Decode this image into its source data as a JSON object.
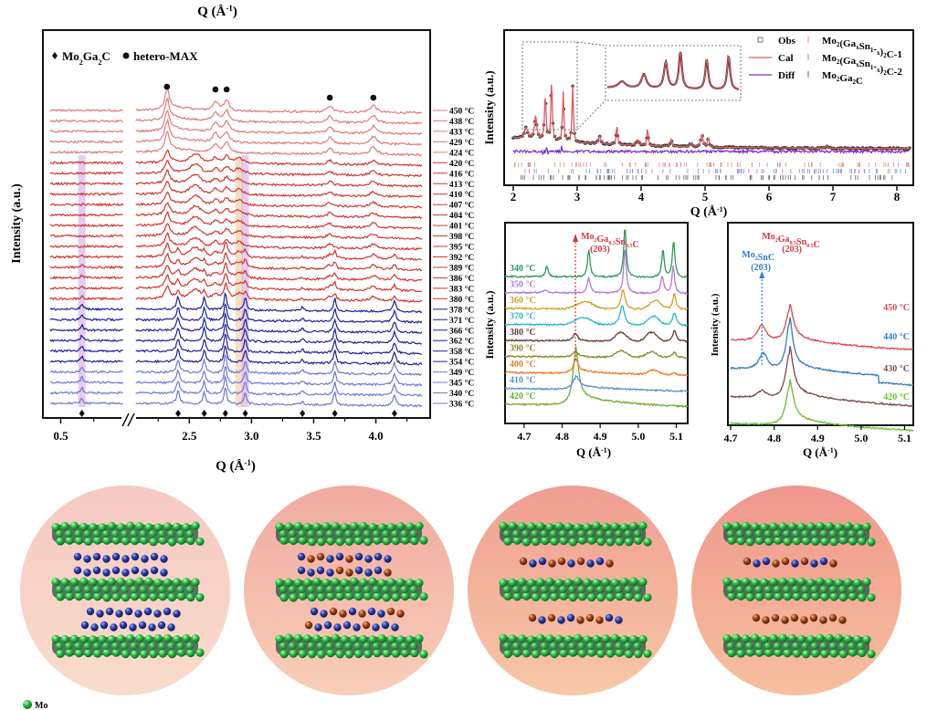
{
  "chart_data": [
    {
      "id": "panel-a",
      "type": "line",
      "subtype": "stacked-waterfall",
      "top_xlabel": "Q (Å-1)",
      "xlabel": "Q (Å-1)",
      "ylabel": "Intensity (a.u.)",
      "x_segments": [
        [
          0.4,
          0.98
        ],
        [
          2.05,
          4.4
        ]
      ],
      "xticks": [
        0.5,
        2.5,
        3.0,
        3.5,
        4.0
      ],
      "axis_break": true,
      "legend": [
        {
          "marker": "diamond",
          "label": "Mo2Ga2C"
        },
        {
          "marker": "circle",
          "label": "hetero-MAX"
        }
      ],
      "hetero_max_peaks": [
        2.32,
        2.71,
        2.8,
        3.63,
        3.98
      ],
      "mo2ga2c_peaks": [
        0.66,
        2.41,
        2.62,
        2.79,
        2.95,
        3.41,
        3.67,
        4.15
      ],
      "highlight_bands": [
        {
          "q": 0.66,
          "color": "#c58be0"
        },
        {
          "q": 2.9,
          "color": "#f3b678"
        },
        {
          "q": 2.95,
          "color": "#c58be0"
        }
      ],
      "temperatures": [
        "450 °C",
        "438 °C",
        "433 °C",
        "429 °C",
        "424 °C",
        "420 °C",
        "416 °C",
        "413 °C",
        "410 °C",
        "407 °C",
        "404 °C",
        "401 °C",
        "398 °C",
        "395 °C",
        "392 °C",
        "389 °C",
        "386 °C",
        "383 °C",
        "380 °C",
        "378 °C",
        "371 °C",
        "366 °C",
        "362 °C",
        "358 °C",
        "354 °C",
        "349 °C",
        "345 °C",
        "340 °C",
        "336 °C"
      ],
      "trace_colors": {
        "high": "#e07a78",
        "mid": "#d2322d",
        "low": "#1b1f9c",
        "lowest": "#6c78d6"
      }
    },
    {
      "id": "panel-b",
      "type": "line",
      "subtype": "rietveld-refinement",
      "xlabel": "Q (Å-1)",
      "ylabel": "Intensity (a.u.)",
      "xlim": [
        1.95,
        8.3
      ],
      "xticks": [
        2,
        3,
        4,
        5,
        6,
        7,
        8
      ],
      "legend_left": [
        {
          "marker": "square-open",
          "label": "Obs",
          "color": "#555555"
        },
        {
          "marker": "line",
          "label": "Cal",
          "color": "#e05a5a"
        },
        {
          "marker": "line",
          "label": "Diff",
          "color": "#7a2ccf"
        }
      ],
      "legend_right": [
        {
          "marker": "tick",
          "label": "Mo2(GaxSn1-x)2C-1",
          "color": "#e08a8a"
        },
        {
          "marker": "tick",
          "label": "Mo2(GaxSn1-x)2C-2",
          "color": "#8a8ad8"
        },
        {
          "marker": "tick",
          "label": "Mo2Ga2C",
          "color": "#666666"
        }
      ],
      "peaks": [
        2.35,
        2.5,
        2.6,
        2.78,
        2.95,
        3.62,
        4.1,
        4.47,
        4.95,
        5.05,
        6.9
      ],
      "inset": "zoomed 2.1–3.0 Å-1 region"
    },
    {
      "id": "panel-c",
      "type": "line",
      "subtype": "stacked",
      "xlabel": "Q (Å-1)",
      "ylabel": "Intensity (a.u.)",
      "xlim": [
        4.65,
        5.13
      ],
      "xticks": [
        4.7,
        4.8,
        4.9,
        5.0,
        5.1
      ],
      "annotation": {
        "label": "Mo2Ga0.5Sn0.5C",
        "sub": "(203)",
        "q": 4.835,
        "color": "#d8363c"
      },
      "series": [
        {
          "name": "420 °C",
          "color": "#6cae2c"
        },
        {
          "name": "410 °C",
          "color": "#5b8fd0"
        },
        {
          "name": "400 °C",
          "color": "#ee7a22"
        },
        {
          "name": "390 °C",
          "color": "#8a8a28"
        },
        {
          "name": "380 °C",
          "color": "#6a3c38"
        },
        {
          "name": "370 °C",
          "color": "#25b8c8"
        },
        {
          "name": "360 °C",
          "color": "#d4a020"
        },
        {
          "name": "350 °C",
          "color": "#b27ad6"
        },
        {
          "name": "340 °C",
          "color": "#2a9a5a"
        }
      ]
    },
    {
      "id": "panel-d",
      "type": "line",
      "subtype": "stacked",
      "xlabel": "Q (Å-1)",
      "ylabel": "Intensity (a.u.)",
      "xlim": [
        4.7,
        5.12
      ],
      "xticks": [
        4.7,
        4.8,
        4.9,
        5.0,
        5.1
      ],
      "annotations": [
        {
          "label": "Mo2Ga0.5Sn0.5C",
          "sub": "(203)",
          "q": 4.835,
          "color": "#d8363c"
        },
        {
          "label": "Mo2SnC",
          "sub": "(203)",
          "q": 4.77,
          "color": "#2f7dc8"
        }
      ],
      "series": [
        {
          "name": "450 °C",
          "color": "#d84a4a"
        },
        {
          "name": "440 °C",
          "color": "#2f7dc8"
        },
        {
          "name": "430 °C",
          "color": "#7a4a48"
        },
        {
          "name": "420 °C",
          "color": "#6cbf2c"
        }
      ]
    }
  ],
  "diagram": {
    "panels": [
      {
        "layers": [
          [
            "Ga",
            "Ga",
            "Ga",
            "Ga",
            "Ga",
            "Ga",
            "Ga",
            "Ga",
            "Ga",
            "Ga"
          ],
          [
            "Ga",
            "Ga",
            "Ga",
            "Ga",
            "Ga",
            "Ga",
            "Ga",
            "Ga",
            "Ga",
            "Ga"
          ],
          [
            "Ga",
            "Ga",
            "Ga",
            "Ga",
            "Ga",
            "Ga",
            "Ga",
            "Ga",
            "Ga",
            "Ga"
          ],
          [
            "Ga",
            "Ga",
            "Ga",
            "Ga",
            "Ga",
            "Ga",
            "Ga",
            "Ga",
            "Ga",
            "Ga"
          ]
        ],
        "double": true
      },
      {
        "layers": [
          [
            "Ga",
            "Sn",
            "Sn",
            "Ga",
            "Ga",
            "Sn",
            "Ga",
            "Ga",
            "Ga",
            "Ga"
          ],
          [
            "Ga",
            "Ga",
            "Ga",
            "Ga",
            "Sn",
            "Sn",
            "Ga",
            "Ga",
            "Ga",
            "Sn"
          ],
          [
            "Ga",
            "Ga",
            "Sn",
            "Sn",
            "Ga",
            "Sn",
            "Ga",
            "Ga",
            "Sn",
            "Sn"
          ],
          [
            "Sn",
            "Ga",
            "Ga",
            "Ga",
            "Ga",
            "Ga",
            "Sn",
            "Ga",
            "Ga",
            "Ga"
          ]
        ],
        "double": true
      },
      {
        "layers": [
          [
            "Sn",
            "Ga",
            "Ga",
            "Sn",
            "Sn",
            "Ga",
            "Sn",
            "Ga",
            "Ga",
            "Sn"
          ],
          [
            "Sn",
            "Ga",
            "Sn",
            "Ga",
            "Ga",
            "Sn",
            "Sn",
            "Sn",
            "Ga",
            "Ga"
          ]
        ],
        "double": false
      },
      {
        "layers": [
          [
            "Sn",
            "Ga",
            "Ga",
            "Sn",
            "Sn",
            "Ga",
            "Sn",
            "Ga",
            "Ga",
            "Sn"
          ],
          [
            "Sn",
            "Sn",
            "Sn",
            "Sn",
            "Sn",
            "Sn",
            "Sn",
            "Sn",
            "Sn",
            "Sn"
          ]
        ],
        "double": false
      }
    ],
    "legend": [
      {
        "atom": "Mo",
        "color": "#2fbf4a"
      }
    ],
    "atom_colors": {
      "Mo": "#2fbf4a",
      "Ga": "#2a3fa8",
      "Sn": "#a4461c"
    }
  }
}
